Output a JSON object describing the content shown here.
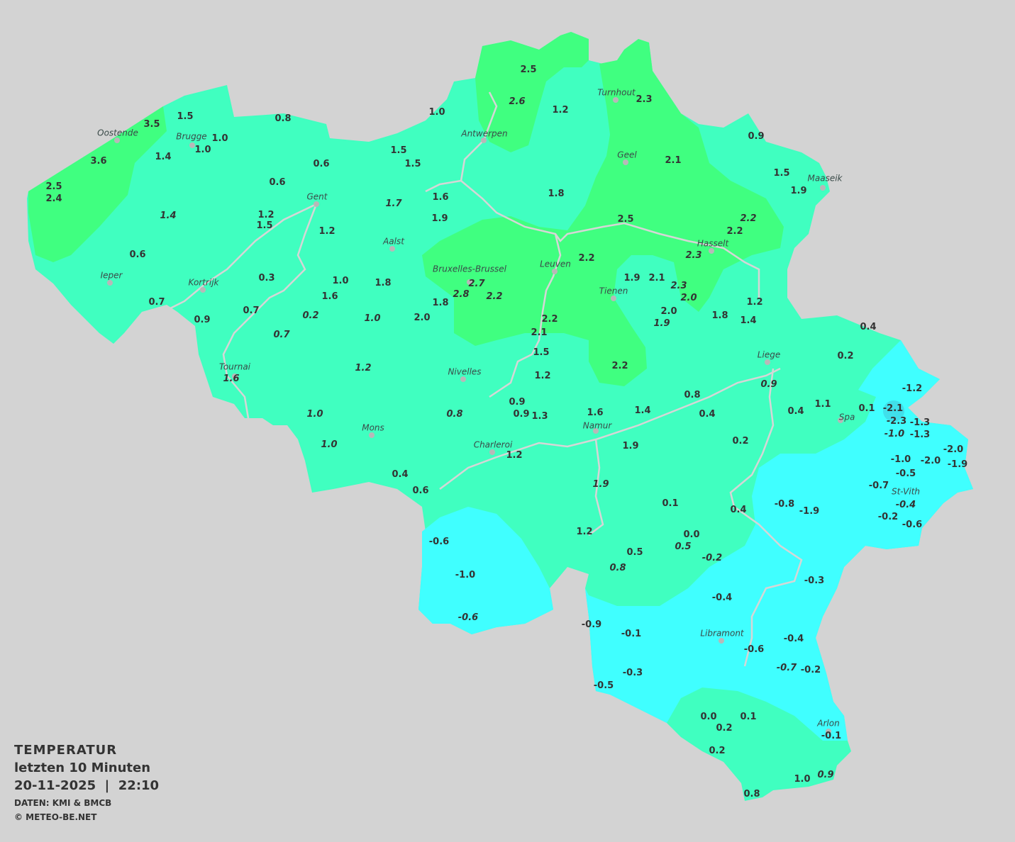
{
  "legend": {
    "title": "TEMPERATUR",
    "subtitle": "letzten 10 Minuten",
    "datetime": "20-11-2025  |  22:10",
    "source": "DATEN: KMI & BMCB",
    "copyright": "© METEO-BE.NET"
  },
  "colors": {
    "background": "#d3d3d3",
    "band_0_to_2": "#40ffc0",
    "band_2_to_4": "#40ff80",
    "band_below_0": "#40ffff",
    "band_below_minus2": "#40e0ea",
    "text": "#333333"
  },
  "cities": [
    "Oostende",
    "Brugge",
    "Antwerpen",
    "Turnhout",
    "Geel",
    "Maaseik",
    "Gent",
    "Aalst",
    "Hasselt",
    "Leuven",
    "Bruxelles-Brussel",
    "Ieper",
    "Kortrijk",
    "Tienen",
    "Liege",
    "Tournai",
    "Nivelles",
    "Spa",
    "Mons",
    "Namur",
    "Charleroi",
    "St-Vith",
    "Libramont",
    "Arlon"
  ],
  "readings": [
    "2.5",
    "2.6",
    "1.2",
    "2.3",
    "1.0",
    "1.5",
    "3.5",
    "0.8",
    "1.0",
    "1.0",
    "1.4",
    "3.6",
    "2.5",
    "2.4",
    "0.6",
    "0.6",
    "1.5",
    "1.5",
    "0.9",
    "2.1",
    "1.5",
    "1.9",
    "1.8",
    "1.6",
    "1.7",
    "1.9",
    "1.4",
    "1.2",
    "1.5",
    "1.2",
    "2.5",
    "2.2",
    "2.2",
    "2.3",
    "0.6",
    "2.2",
    "0.3",
    "1.0",
    "1.8",
    "2.7",
    "2.8",
    "1.9",
    "2.1",
    "2.3",
    "2.0",
    "1.6",
    "2.2",
    "1.8",
    "0.7",
    "1.2",
    "0.7",
    "0.2",
    "1.0",
    "2.0",
    "0.9",
    "2.2",
    "2.0",
    "1.9",
    "1.8",
    "1.4",
    "0.7",
    "2.1",
    "0.4",
    "1.5",
    "0.2",
    "1.2",
    "1.6",
    "2.2",
    "1.2",
    "0.9",
    "-1.2",
    "0.9",
    "0.8",
    "1.0",
    "0.8",
    "0.9",
    "1.3",
    "1.6",
    "1.4",
    "0.4",
    "0.4",
    "1.1",
    "0.1",
    "-2.1",
    "-2.3",
    "-1.3",
    "-1.0",
    "-1.3",
    "1.0",
    "1.2",
    "1.9",
    "0.2",
    "-2.0",
    "-2.0",
    "-1.9",
    "-1.0",
    "-0.5",
    "0.4",
    "0.6",
    "-0.7",
    "1.9",
    "-0.4",
    "-0.8",
    "-1.9",
    "0.1",
    "0.4",
    "-0.2",
    "-0.6",
    "1.2",
    "0.0",
    "0.5",
    "-0.6",
    "0.5",
    "-0.2",
    "0.8",
    "-1.0",
    "-0.3",
    "-0.4",
    "-0.6",
    "-0.9",
    "-0.1",
    "-0.4",
    "-0.6",
    "-0.7",
    "-0.2",
    "-0.3",
    "-0.5",
    "0.1",
    "0.0",
    "0.2",
    "-0.1",
    "0.2",
    "1.0",
    "0.9",
    "0.8"
  ]
}
